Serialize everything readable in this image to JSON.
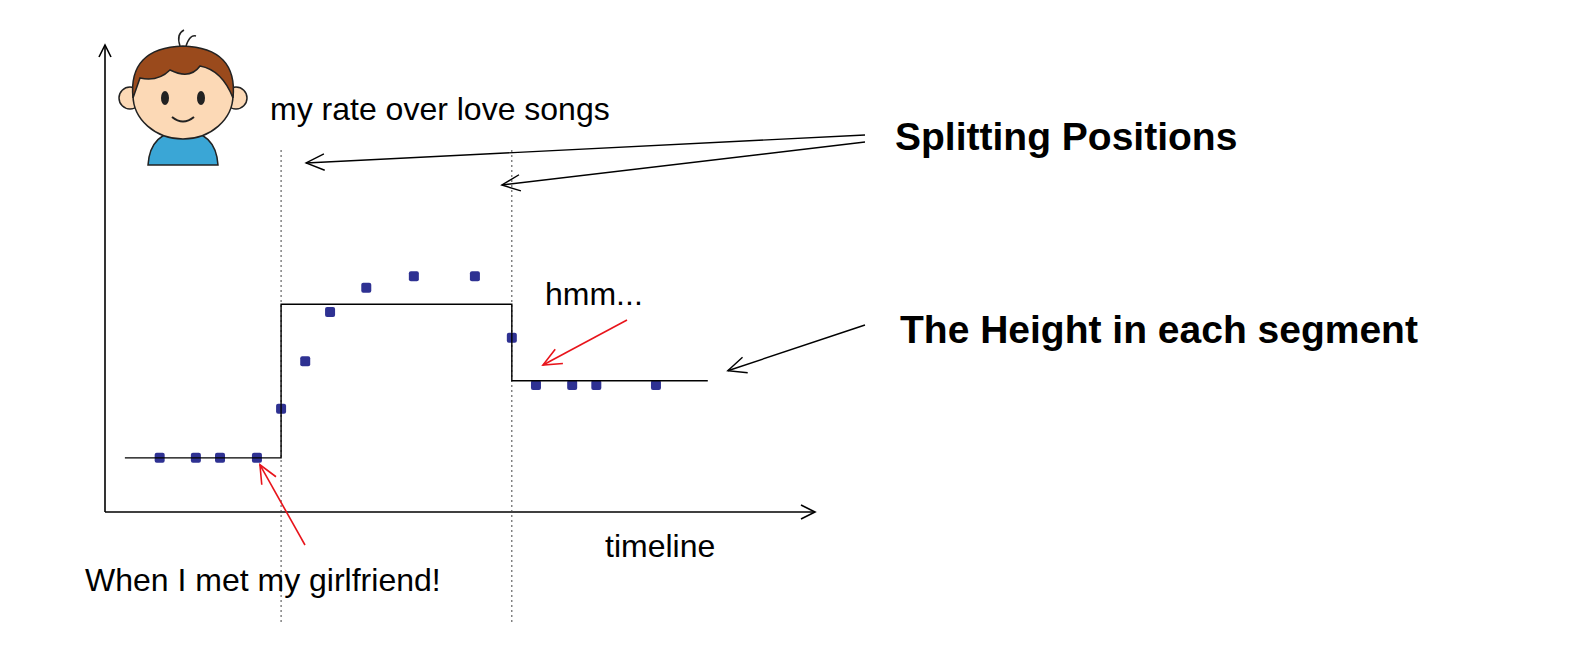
{
  "chart_data": {
    "type": "scatter",
    "y_label": "my rate over love songs",
    "x_label": "timeline",
    "xlim": [
      0,
      100
    ],
    "ylim": [
      0,
      100
    ],
    "tick_labels": false,
    "grid": false,
    "series": [
      {
        "type": "scatter",
        "color": "#2e3192",
        "marker": "square",
        "x": [
          7.7,
          12.8,
          16.2,
          21.4,
          24.8,
          28.2,
          31.7,
          36.8,
          43.5,
          52.1,
          57.3,
          60.7,
          65.8,
          69.2,
          77.6
        ],
        "values": [
          11.6,
          11.6,
          11.6,
          11.6,
          22.1,
          32.3,
          42.8,
          48.0,
          50.5,
          50.5,
          37.3,
          27.2,
          27.2,
          27.2,
          27.2
        ]
      },
      {
        "type": "line",
        "color": "#000000",
        "line_style": "solid",
        "x": [
          2.8,
          24.8,
          24.8,
          57.3,
          57.3,
          84.9
        ],
        "values": [
          11.6,
          11.6,
          44.5,
          44.5,
          28.1,
          28.1
        ]
      }
    ],
    "splits": [
      24.8,
      57.3
    ],
    "annotations": [
      "When I met my girlfriend!",
      "hmm...",
      "Splitting Positions",
      "The Height in each segment"
    ]
  }
}
